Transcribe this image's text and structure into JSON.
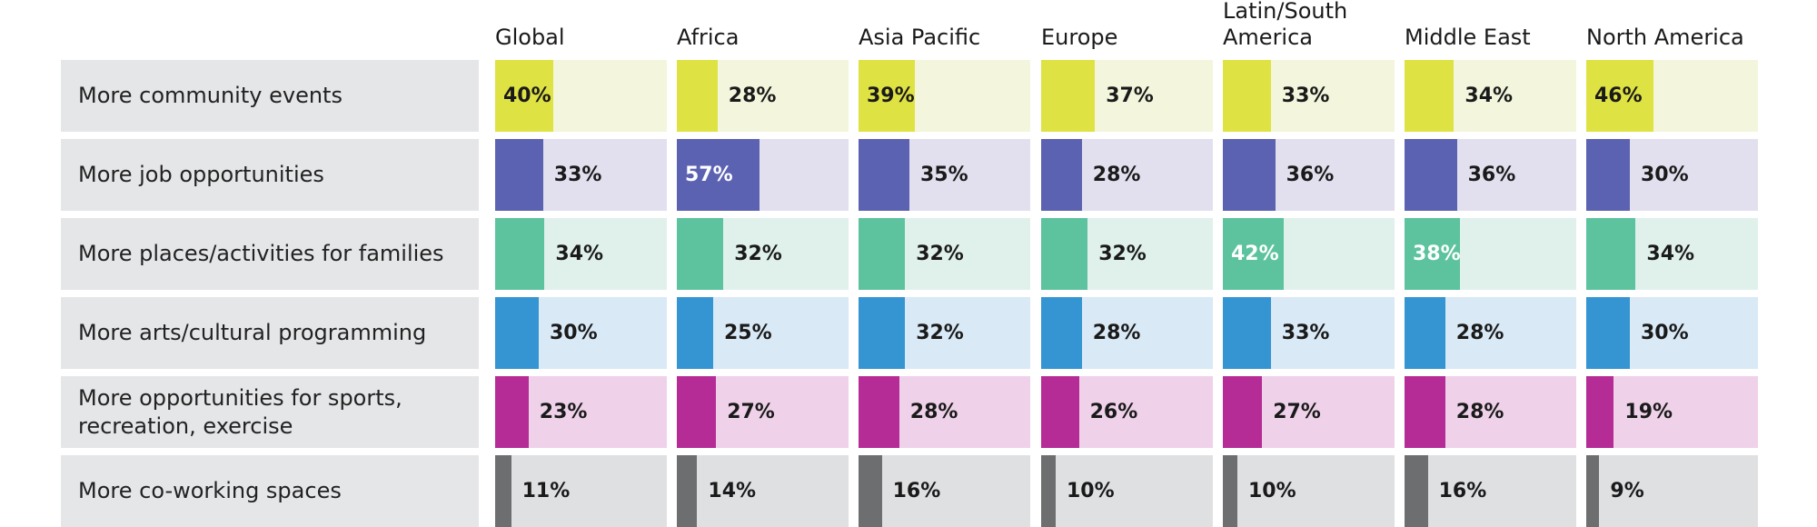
{
  "chart_data": {
    "type": "bar",
    "categories": [
      "More community events",
      "More job opportunities",
      "More places/activities for families",
      "More arts/cultural programming",
      "More opportunities for sports, recreation, exercise",
      "More co-working spaces"
    ],
    "regions": [
      "Global",
      "Africa",
      "Asia Pacific",
      "Europe",
      "Latin/South America",
      "Middle East",
      "North America"
    ],
    "series": [
      {
        "name": "Global",
        "values": [
          40,
          33,
          34,
          30,
          23,
          11
        ]
      },
      {
        "name": "Africa",
        "values": [
          28,
          57,
          32,
          25,
          27,
          14
        ]
      },
      {
        "name": "Asia Pacific",
        "values": [
          39,
          35,
          32,
          32,
          28,
          16
        ]
      },
      {
        "name": "Europe",
        "values": [
          37,
          28,
          32,
          28,
          26,
          10
        ]
      },
      {
        "name": "Latin/South America",
        "values": [
          33,
          36,
          42,
          33,
          27,
          10
        ]
      },
      {
        "name": "Middle East",
        "values": [
          34,
          36,
          38,
          28,
          28,
          16
        ]
      },
      {
        "name": "North America",
        "values": [
          46,
          30,
          34,
          30,
          19,
          9
        ]
      }
    ],
    "highlight": [
      [
        true,
        false,
        true,
        false,
        false,
        false,
        true
      ],
      [
        false,
        true,
        false,
        false,
        false,
        false,
        false
      ],
      [
        false,
        false,
        false,
        false,
        true,
        true,
        false
      ],
      [
        false,
        false,
        false,
        false,
        false,
        false,
        false
      ],
      [
        false,
        false,
        false,
        false,
        false,
        false,
        false
      ],
      [
        false,
        false,
        false,
        false,
        false,
        false,
        false
      ]
    ],
    "unit": "%",
    "colors": {
      "bars": [
        "#dfe243",
        "#5c62b2",
        "#5cc39e",
        "#3594d2",
        "#b52c96",
        "#6d6e70"
      ],
      "backgrounds": [
        "#f3f6dd",
        "#e2e0ef",
        "#e0f1ec",
        "#d9e9f6",
        "#efd2ea",
        "#dfe0e2"
      ],
      "label_background": "#e5e6e8"
    }
  }
}
